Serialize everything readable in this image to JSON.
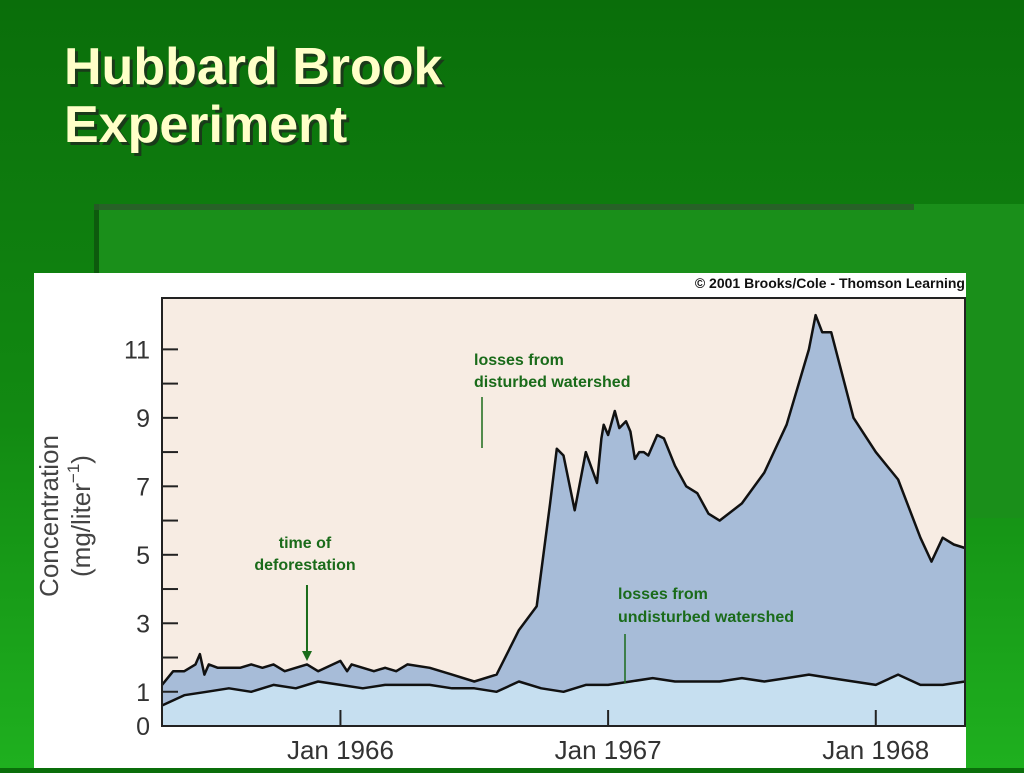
{
  "slide": {
    "title_line1": "Hubbard Brook",
    "title_line2": "Experiment"
  },
  "colors": {
    "background": "#0e7a0e",
    "title": "#ffffc8",
    "plot_background": "#f7ece3",
    "disturbed_fill": "#a7bcd8",
    "undisturbed_fill": "#c6dff0",
    "annotation_text": "#1a6b1a"
  },
  "chart_data": {
    "type": "area",
    "copyright": "© 2001 Brooks/Cole - Thomson Learning",
    "ylabel_line1": "Concentration",
    "ylabel_line2": "(mg/liter",
    "ylabel_exponent": "−1",
    "ylabel_close": ")",
    "y_tick_labels": [
      "0",
      "1",
      "3",
      "5",
      "7",
      "9",
      "11"
    ],
    "y_tick_values": [
      0,
      1,
      3,
      5,
      7,
      9,
      11
    ],
    "y_minor_ticks": [
      2,
      4,
      6,
      8,
      10
    ],
    "ylim": [
      0,
      12.5
    ],
    "x_unit": "months after Jul 1965",
    "xlim": [
      0,
      36
    ],
    "x_ticks": [
      {
        "label": "Jan 1966",
        "value": 8
      },
      {
        "label": "Jan 1967",
        "value": 20
      },
      {
        "label": "Jan 1968",
        "value": 32
      }
    ],
    "series": [
      {
        "key": "disturbed",
        "x": [
          0,
          0.5,
          1,
          1.5,
          1.7,
          1.9,
          2.1,
          2.5,
          3.5,
          4,
          4.5,
          5,
          5.5,
          6,
          6.5,
          7,
          8,
          8.3,
          8.5,
          9,
          9.5,
          10,
          10.5,
          11,
          12,
          13,
          14,
          15,
          16,
          16.8,
          17.4,
          17.7,
          18,
          18.5,
          19,
          19.5,
          19.7,
          19.8,
          20,
          20.3,
          20.5,
          20.8,
          21,
          21.2,
          21.4,
          21.6,
          21.8,
          22.2,
          22.5,
          23,
          23.5,
          24,
          24.5,
          25,
          26,
          27,
          28,
          29,
          29.3,
          29.6,
          30,
          31,
          32,
          33,
          34,
          34.5,
          35,
          35.5,
          36
        ],
        "y": [
          1.2,
          1.6,
          1.6,
          1.8,
          2.1,
          1.5,
          1.8,
          1.7,
          1.7,
          1.8,
          1.7,
          1.8,
          1.6,
          1.7,
          1.8,
          1.6,
          1.9,
          1.6,
          1.8,
          1.7,
          1.6,
          1.7,
          1.6,
          1.8,
          1.7,
          1.5,
          1.3,
          1.5,
          2.8,
          3.5,
          6.5,
          8.1,
          7.9,
          6.3,
          8.0,
          7.1,
          8.4,
          8.8,
          8.5,
          9.2,
          8.7,
          8.9,
          8.6,
          7.8,
          8.0,
          8.0,
          7.9,
          8.5,
          8.4,
          7.6,
          7.0,
          6.8,
          6.2,
          6.0,
          6.5,
          7.4,
          8.8,
          11.0,
          12.0,
          11.5,
          11.5,
          9.0,
          8.0,
          7.2,
          5.5,
          4.8,
          5.5,
          5.3,
          5.2
        ]
      },
      {
        "key": "undisturbed",
        "x": [
          0,
          1,
          2,
          3,
          4,
          5,
          6,
          7,
          8,
          9,
          10,
          11,
          12,
          13,
          14,
          15,
          16,
          17,
          18,
          19,
          20,
          21,
          22,
          23,
          24,
          25,
          26,
          27,
          28,
          29,
          30,
          31,
          32,
          33,
          34,
          35,
          36
        ],
        "y": [
          0.6,
          0.9,
          1.0,
          1.1,
          1.0,
          1.2,
          1.1,
          1.3,
          1.2,
          1.1,
          1.2,
          1.2,
          1.2,
          1.1,
          1.1,
          1.0,
          1.3,
          1.1,
          1.0,
          1.2,
          1.2,
          1.3,
          1.4,
          1.3,
          1.3,
          1.3,
          1.4,
          1.3,
          1.4,
          1.5,
          1.4,
          1.3,
          1.2,
          1.5,
          1.2,
          1.2,
          1.3
        ]
      }
    ],
    "annotations": {
      "deforestation_line1": "time of",
      "deforestation_line2": "deforestation",
      "deforestation_x": 6.5,
      "disturbed_line1": "losses from",
      "disturbed_line2": "disturbed watershed",
      "undisturbed_line1": "losses from",
      "undisturbed_line2": "undisturbed watershed"
    },
    "grid": false
  }
}
